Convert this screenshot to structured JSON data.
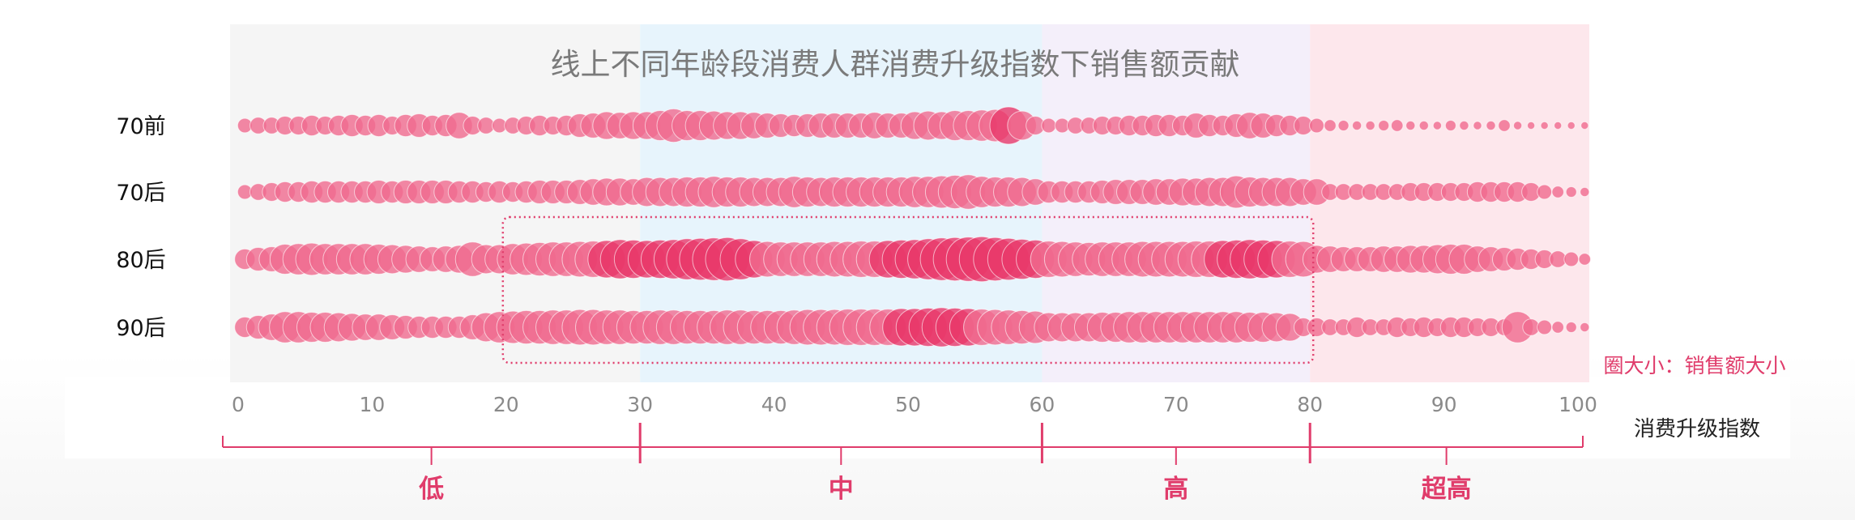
{
  "chart_data": {
    "type": "scatter",
    "title": "线上不同年龄段消费人群消费升级指数下销售额贡献",
    "xlabel": "消费升级指数",
    "xlim": [
      0,
      100
    ],
    "xticks": [
      0,
      10,
      20,
      30,
      40,
      50,
      60,
      70,
      80,
      90,
      100
    ],
    "size_legend": "圈大小：销售额大小",
    "bands": [
      {
        "label": "低",
        "range": [
          0,
          30
        ],
        "color": "#f5f5f5"
      },
      {
        "label": "中",
        "range": [
          30,
          60
        ],
        "color": "#e7f4fc"
      },
      {
        "label": "高",
        "range": [
          60,
          80
        ],
        "color": "#f4effa"
      },
      {
        "label": "超高",
        "range": [
          80,
          100
        ],
        "color": "#fde7ec"
      }
    ],
    "highlight_range": {
      "x": [
        20,
        80
      ],
      "rows": [
        "80后",
        "90后"
      ]
    },
    "colors": {
      "bubble": "#f06a8e",
      "bubble_dark": "#e8386a",
      "accent": "#e03c6b",
      "title": "#7a7a7a",
      "tick": "#8a8a8a"
    },
    "series": [
      {
        "name": "70前",
        "x_start": 0.5,
        "step": 1,
        "values": [
          0.15,
          0.2,
          0.2,
          0.25,
          0.25,
          0.3,
          0.25,
          0.3,
          0.35,
          0.3,
          0.35,
          0.25,
          0.35,
          0.4,
          0.3,
          0.35,
          0.5,
          0.25,
          0.2,
          0.15,
          0.2,
          0.25,
          0.3,
          0.25,
          0.3,
          0.4,
          0.45,
          0.55,
          0.5,
          0.55,
          0.55,
          0.65,
          0.8,
          0.65,
          0.65,
          0.6,
          0.55,
          0.55,
          0.5,
          0.45,
          0.4,
          0.35,
          0.4,
          0.45,
          0.45,
          0.45,
          0.45,
          0.5,
          0.45,
          0.45,
          0.55,
          0.6,
          0.55,
          0.65,
          0.65,
          0.7,
          0.75,
          1.0,
          0.6,
          0.25,
          0.15,
          0.15,
          0.2,
          0.2,
          0.25,
          0.25,
          0.3,
          0.3,
          0.35,
          0.35,
          0.3,
          0.45,
          0.35,
          0.3,
          0.4,
          0.5,
          0.45,
          0.35,
          0.3,
          0.25,
          0.15,
          0.1,
          0.08,
          0.06,
          0.06,
          0.08,
          0.1,
          0.06,
          0.06,
          0.05,
          0.08,
          0.06,
          0.05,
          0.06,
          0.1,
          0.05,
          0.04,
          0.04,
          0.04,
          0.04,
          0.04
        ]
      },
      {
        "name": "70后",
        "x_start": 0.5,
        "step": 1,
        "values": [
          0.15,
          0.2,
          0.25,
          0.3,
          0.3,
          0.35,
          0.35,
          0.35,
          0.35,
          0.35,
          0.4,
          0.35,
          0.4,
          0.4,
          0.4,
          0.4,
          0.35,
          0.35,
          0.3,
          0.35,
          0.3,
          0.35,
          0.4,
          0.4,
          0.4,
          0.45,
          0.5,
          0.55,
          0.55,
          0.5,
          0.6,
          0.6,
          0.6,
          0.65,
          0.65,
          0.7,
          0.65,
          0.65,
          0.6,
          0.6,
          0.6,
          0.7,
          0.65,
          0.6,
          0.65,
          0.65,
          0.65,
          0.65,
          0.65,
          0.65,
          0.7,
          0.7,
          0.75,
          0.8,
          0.85,
          0.7,
          0.65,
          0.65,
          0.6,
          0.5,
          0.35,
          0.35,
          0.35,
          0.35,
          0.4,
          0.45,
          0.45,
          0.45,
          0.5,
          0.5,
          0.55,
          0.55,
          0.6,
          0.6,
          0.75,
          0.65,
          0.6,
          0.6,
          0.6,
          0.5,
          0.5,
          0.2,
          0.2,
          0.2,
          0.2,
          0.2,
          0.2,
          0.25,
          0.25,
          0.25,
          0.25,
          0.25,
          0.3,
          0.3,
          0.3,
          0.3,
          0.25,
          0.15,
          0.1,
          0.08,
          0.06
        ]
      },
      {
        "name": "80后",
        "x_start": 0.5,
        "step": 1,
        "values": [
          0.3,
          0.4,
          0.45,
          0.65,
          0.7,
          0.75,
          0.7,
          0.7,
          0.7,
          0.7,
          0.65,
          0.6,
          0.55,
          0.5,
          0.45,
          0.5,
          0.55,
          0.85,
          0.6,
          0.6,
          0.7,
          0.75,
          0.8,
          0.85,
          0.85,
          0.9,
          0.95,
          1.0,
          1.1,
          1.05,
          1.0,
          1.05,
          1.1,
          1.2,
          1.25,
          1.3,
          1.35,
          1.2,
          1.0,
          0.9,
          0.85,
          0.85,
          0.85,
          0.85,
          0.9,
          0.9,
          0.95,
          0.95,
          1.0,
          1.05,
          1.1,
          1.2,
          1.3,
          1.35,
          1.4,
          1.45,
          1.35,
          1.25,
          1.15,
          1.05,
          0.95,
          0.9,
          0.85,
          0.8,
          0.85,
          0.85,
          0.85,
          0.9,
          0.9,
          0.9,
          0.9,
          0.95,
          0.95,
          1.0,
          1.05,
          1.1,
          1.05,
          1.0,
          0.95,
          0.9,
          0.55,
          0.5,
          0.45,
          0.45,
          0.45,
          0.5,
          0.5,
          0.55,
          0.55,
          0.6,
          0.65,
          0.65,
          0.5,
          0.45,
          0.4,
          0.35,
          0.3,
          0.25,
          0.2,
          0.15,
          0.1
        ]
      },
      {
        "name": "90后",
        "x_start": 0.5,
        "step": 1,
        "values": [
          0.3,
          0.4,
          0.5,
          0.7,
          0.7,
          0.65,
          0.65,
          0.6,
          0.55,
          0.5,
          0.5,
          0.45,
          0.4,
          0.35,
          0.35,
          0.35,
          0.35,
          0.45,
          0.6,
          0.7,
          0.75,
          0.8,
          0.8,
          0.85,
          0.85,
          0.9,
          0.9,
          0.85,
          0.85,
          0.8,
          0.8,
          0.85,
          0.85,
          0.8,
          0.8,
          0.8,
          0.85,
          0.85,
          0.8,
          0.8,
          0.8,
          0.85,
          0.9,
          0.9,
          0.9,
          0.95,
          0.95,
          0.95,
          0.95,
          1.0,
          1.0,
          1.05,
          1.1,
          1.05,
          1.0,
          0.95,
          0.9,
          0.85,
          0.8,
          0.75,
          0.6,
          0.6,
          0.6,
          0.6,
          0.65,
          0.65,
          0.7,
          0.7,
          0.7,
          0.7,
          0.7,
          0.7,
          0.7,
          0.7,
          0.7,
          0.65,
          0.65,
          0.6,
          0.55,
          0.25,
          0.25,
          0.2,
          0.2,
          0.3,
          0.2,
          0.2,
          0.3,
          0.25,
          0.3,
          0.25,
          0.3,
          0.3,
          0.25,
          0.25,
          0.2,
          0.7,
          0.2,
          0.15,
          0.1,
          0.08,
          0.06
        ]
      }
    ]
  }
}
